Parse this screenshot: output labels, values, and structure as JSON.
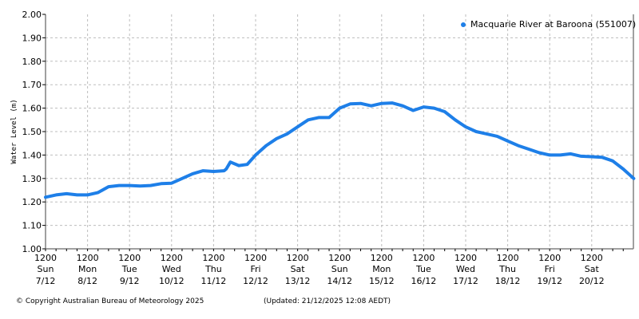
{
  "chart_data": {
    "type": "line",
    "title": "",
    "xlabel": "",
    "ylabel": "Water Level (m)",
    "ylim": [
      1.0,
      2.0
    ],
    "yticks": [
      "1.00",
      "1.10",
      "1.20",
      "1.30",
      "1.40",
      "1.50",
      "1.60",
      "1.70",
      "1.80",
      "1.90",
      "2.00"
    ],
    "xticks": [
      {
        "time": "1200",
        "day": "Sun",
        "date": "7/12"
      },
      {
        "time": "1200",
        "day": "Mon",
        "date": "8/12"
      },
      {
        "time": "1200",
        "day": "Tue",
        "date": "9/12"
      },
      {
        "time": "1200",
        "day": "Wed",
        "date": "10/12"
      },
      {
        "time": "1200",
        "day": "Thu",
        "date": "11/12"
      },
      {
        "time": "1200",
        "day": "Fri",
        "date": "12/12"
      },
      {
        "time": "1200",
        "day": "Sat",
        "date": "13/12"
      },
      {
        "time": "1200",
        "day": "Sun",
        "date": "14/12"
      },
      {
        "time": "1200",
        "day": "Mon",
        "date": "15/12"
      },
      {
        "time": "1200",
        "day": "Tue",
        "date": "16/12"
      },
      {
        "time": "1200",
        "day": "Wed",
        "date": "17/12"
      },
      {
        "time": "1200",
        "day": "Thu",
        "date": "18/12"
      },
      {
        "time": "1200",
        "day": "Fri",
        "date": "19/12"
      },
      {
        "time": "1200",
        "day": "Sat",
        "date": "20/12"
      }
    ],
    "grid": true,
    "legend_position": "top-right",
    "series": [
      {
        "name": "Macquarie River at Baroona (551007)",
        "color": "#1e7fe8",
        "x_days_from_sun_7_12_noon": [
          0,
          0.25,
          0.5,
          0.75,
          1.0,
          1.25,
          1.5,
          1.75,
          2.0,
          2.25,
          2.5,
          2.75,
          3.0,
          3.25,
          3.5,
          3.75,
          4.0,
          4.25,
          4.3,
          4.4,
          4.6,
          4.8,
          5.0,
          5.25,
          5.5,
          5.75,
          6.0,
          6.25,
          6.5,
          6.75,
          7.0,
          7.25,
          7.5,
          7.75,
          8.0,
          8.25,
          8.5,
          8.75,
          9.0,
          9.25,
          9.5,
          9.75,
          10.0,
          10.25,
          10.5,
          10.75,
          11.0,
          11.25,
          11.5,
          11.75,
          12.0,
          12.25,
          12.5,
          12.75,
          13.0,
          13.25,
          13.5,
          13.75,
          14.0
        ],
        "values": [
          1.22,
          1.23,
          1.235,
          1.23,
          1.23,
          1.24,
          1.265,
          1.27,
          1.27,
          1.268,
          1.27,
          1.278,
          1.28,
          1.3,
          1.32,
          1.333,
          1.33,
          1.333,
          1.34,
          1.37,
          1.355,
          1.36,
          1.4,
          1.44,
          1.47,
          1.49,
          1.52,
          1.55,
          1.56,
          1.56,
          1.6,
          1.618,
          1.62,
          1.61,
          1.62,
          1.622,
          1.61,
          1.59,
          1.605,
          1.6,
          1.585,
          1.55,
          1.52,
          1.5,
          1.49,
          1.48,
          1.46,
          1.44,
          1.425,
          1.41,
          1.4,
          1.4,
          1.405,
          1.395,
          1.393,
          1.39,
          1.375,
          1.34,
          1.3
        ]
      }
    ]
  },
  "legend": {
    "label": "Macquarie River at Baroona (551007)",
    "color": "#1e7fe8"
  },
  "footer": {
    "copyright": "© Copyright Australian Bureau of Meteorology 2025",
    "updated": "(Updated: 21/12/2025 12:08 AEDT)"
  }
}
